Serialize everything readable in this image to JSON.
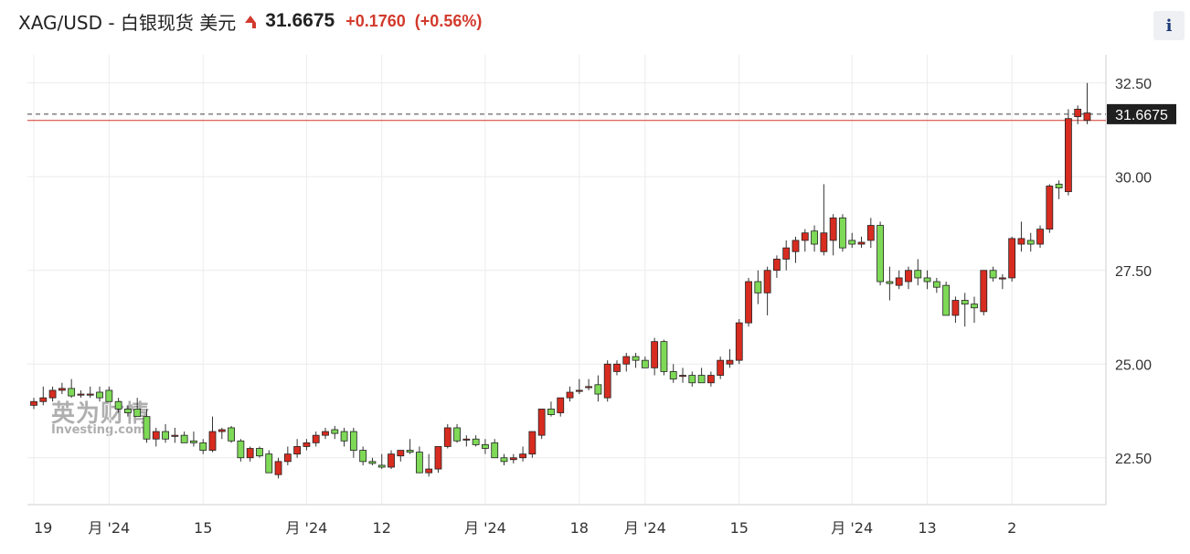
{
  "header": {
    "instrument": "XAG/USD - 白银现货 美元",
    "price": "31.6675",
    "change": "+0.1760",
    "change_pct": "(+0.56%)"
  },
  "info_button": {
    "label": "i"
  },
  "watermark": {
    "cn": "英为财情",
    "en": "Investing.com"
  },
  "colors": {
    "up": "#7ed957",
    "down": "#d82c20",
    "price_line": "#d23a2d",
    "grid": "#ececec",
    "axis_text": "#333333"
  },
  "chart_data": {
    "type": "candlestick",
    "ylim": [
      21.25,
      33.25
    ],
    "y_ticks": [
      22.5,
      25.0,
      27.5,
      30.0,
      32.5
    ],
    "y_tick_labels": [
      "22.50",
      "25.00",
      "27.50",
      "30.00",
      "32.50"
    ],
    "x_tick_labels": [
      "19",
      "月 '24",
      "15",
      "月 '24",
      "12",
      "月 '24",
      "18",
      "月 '24",
      "15",
      "月 '24",
      "13",
      "2"
    ],
    "x_tick_index": [
      0,
      8,
      18,
      29,
      37,
      48,
      58,
      65,
      75,
      87,
      95,
      104
    ],
    "current_price": 31.6675,
    "current_price_label": "31.6675",
    "reference_line": 31.5,
    "grid": true,
    "candles": [
      [
        23.9,
        24.1,
        23.8,
        24.0
      ],
      [
        24.0,
        24.4,
        23.9,
        24.1
      ],
      [
        24.1,
        24.4,
        24.0,
        24.3
      ],
      [
        24.3,
        24.5,
        24.2,
        24.35
      ],
      [
        24.35,
        24.6,
        24.1,
        24.15
      ],
      [
        24.2,
        24.3,
        24.1,
        24.2
      ],
      [
        24.2,
        24.4,
        24.1,
        24.2
      ],
      [
        24.25,
        24.4,
        24.0,
        24.1
      ],
      [
        24.3,
        24.4,
        24.0,
        24.0
      ],
      [
        24.0,
        24.1,
        23.7,
        23.8
      ],
      [
        23.8,
        23.9,
        23.6,
        23.7
      ],
      [
        23.8,
        24.1,
        23.6,
        23.6
      ],
      [
        23.6,
        23.8,
        22.9,
        23.0
      ],
      [
        23.0,
        23.3,
        22.8,
        23.2
      ],
      [
        23.2,
        23.4,
        22.9,
        23.0
      ],
      [
        23.1,
        23.3,
        22.9,
        23.1
      ],
      [
        23.1,
        23.2,
        22.9,
        22.9
      ],
      [
        22.95,
        23.2,
        22.8,
        22.9
      ],
      [
        22.9,
        23.0,
        22.6,
        22.7
      ],
      [
        22.7,
        23.6,
        22.65,
        23.2
      ],
      [
        23.2,
        23.3,
        23.0,
        23.25
      ],
      [
        23.3,
        23.35,
        22.9,
        22.95
      ],
      [
        22.95,
        23.0,
        22.4,
        22.5
      ],
      [
        22.5,
        22.8,
        22.4,
        22.75
      ],
      [
        22.75,
        22.8,
        22.5,
        22.55
      ],
      [
        22.6,
        22.7,
        22.1,
        22.1
      ],
      [
        22.05,
        22.5,
        21.95,
        22.4
      ],
      [
        22.4,
        22.8,
        22.3,
        22.6
      ],
      [
        22.6,
        23.0,
        22.5,
        22.8
      ],
      [
        22.8,
        23.0,
        22.7,
        22.9
      ],
      [
        22.9,
        23.2,
        22.8,
        23.1
      ],
      [
        23.1,
        23.3,
        23.0,
        23.2
      ],
      [
        23.25,
        23.35,
        23.0,
        23.15
      ],
      [
        23.2,
        23.3,
        22.8,
        22.95
      ],
      [
        23.2,
        23.3,
        22.5,
        22.7
      ],
      [
        22.7,
        22.8,
        22.3,
        22.4
      ],
      [
        22.4,
        22.5,
        22.3,
        22.35
      ],
      [
        22.3,
        22.6,
        22.2,
        22.25
      ],
      [
        22.25,
        22.7,
        22.2,
        22.6
      ],
      [
        22.55,
        22.7,
        22.4,
        22.7
      ],
      [
        22.7,
        23.0,
        22.6,
        22.65
      ],
      [
        22.65,
        22.8,
        22.1,
        22.1
      ],
      [
        22.1,
        22.6,
        22.0,
        22.2
      ],
      [
        22.2,
        22.8,
        22.1,
        22.8
      ],
      [
        22.8,
        23.4,
        22.75,
        23.3
      ],
      [
        23.3,
        23.4,
        22.9,
        22.95
      ],
      [
        23.0,
        23.1,
        22.8,
        23.0
      ],
      [
        23.0,
        23.1,
        22.8,
        22.85
      ],
      [
        22.85,
        23.0,
        22.6,
        22.75
      ],
      [
        22.9,
        23.0,
        22.5,
        22.5
      ],
      [
        22.5,
        22.6,
        22.3,
        22.4
      ],
      [
        22.45,
        22.6,
        22.35,
        22.5
      ],
      [
        22.5,
        22.8,
        22.4,
        22.6
      ],
      [
        22.6,
        23.2,
        22.5,
        23.2
      ],
      [
        23.1,
        23.8,
        23.0,
        23.8
      ],
      [
        23.8,
        24.0,
        23.6,
        23.65
      ],
      [
        23.7,
        24.1,
        23.6,
        24.1
      ],
      [
        24.1,
        24.4,
        24.0,
        24.25
      ],
      [
        24.3,
        24.6,
        24.2,
        24.3
      ],
      [
        24.4,
        24.6,
        24.3,
        24.4
      ],
      [
        24.45,
        24.7,
        24.0,
        24.2
      ],
      [
        24.1,
        25.1,
        24.0,
        25.0
      ],
      [
        24.8,
        25.1,
        24.7,
        25.0
      ],
      [
        25.0,
        25.3,
        24.8,
        25.2
      ],
      [
        25.2,
        25.3,
        24.9,
        25.1
      ],
      [
        25.1,
        25.2,
        24.9,
        24.9
      ],
      [
        24.9,
        25.7,
        24.7,
        25.6
      ],
      [
        25.6,
        25.65,
        24.7,
        24.8
      ],
      [
        24.8,
        25.0,
        24.5,
        24.6
      ],
      [
        24.7,
        24.9,
        24.5,
        24.7
      ],
      [
        24.7,
        24.8,
        24.4,
        24.5
      ],
      [
        24.7,
        24.9,
        24.5,
        24.5
      ],
      [
        24.5,
        24.8,
        24.4,
        24.7
      ],
      [
        24.7,
        25.2,
        24.6,
        25.1
      ],
      [
        25.0,
        25.4,
        24.9,
        25.1
      ],
      [
        25.1,
        26.2,
        25.0,
        26.1
      ],
      [
        26.1,
        27.3,
        26.0,
        27.2
      ],
      [
        27.2,
        27.5,
        26.6,
        26.9
      ],
      [
        26.9,
        27.6,
        26.3,
        27.5
      ],
      [
        27.5,
        27.9,
        27.3,
        27.8
      ],
      [
        27.8,
        28.3,
        27.5,
        28.1
      ],
      [
        28.0,
        28.4,
        27.7,
        28.3
      ],
      [
        28.3,
        28.6,
        28.0,
        28.5
      ],
      [
        28.55,
        28.7,
        28.0,
        28.2
      ],
      [
        28.0,
        29.8,
        27.9,
        28.5
      ],
      [
        28.3,
        29.0,
        27.9,
        28.9
      ],
      [
        28.9,
        29.0,
        28.0,
        28.1
      ],
      [
        28.3,
        28.5,
        28.1,
        28.2
      ],
      [
        28.2,
        28.4,
        28.1,
        28.25
      ],
      [
        28.3,
        28.9,
        28.1,
        28.7
      ],
      [
        28.7,
        28.8,
        27.1,
        27.2
      ],
      [
        27.2,
        27.6,
        26.7,
        27.15
      ],
      [
        27.1,
        27.5,
        27.0,
        27.3
      ],
      [
        27.2,
        27.6,
        27.0,
        27.5
      ],
      [
        27.5,
        27.8,
        27.1,
        27.3
      ],
      [
        27.3,
        27.5,
        27.0,
        27.2
      ],
      [
        27.2,
        27.3,
        26.9,
        27.05
      ],
      [
        27.1,
        27.2,
        26.3,
        26.3
      ],
      [
        26.3,
        26.8,
        26.1,
        26.7
      ],
      [
        26.7,
        26.9,
        26.0,
        26.6
      ],
      [
        26.6,
        26.8,
        26.1,
        26.5
      ],
      [
        26.4,
        27.5,
        26.3,
        27.5
      ],
      [
        27.5,
        27.6,
        27.2,
        27.3
      ],
      [
        27.3,
        27.4,
        27.0,
        27.3
      ],
      [
        27.3,
        28.4,
        27.2,
        28.35
      ],
      [
        28.2,
        28.8,
        28.0,
        28.35
      ],
      [
        28.3,
        28.5,
        28.0,
        28.2
      ],
      [
        28.2,
        28.7,
        28.1,
        28.6
      ],
      [
        28.6,
        29.8,
        28.5,
        29.75
      ],
      [
        29.8,
        29.9,
        29.4,
        29.7
      ],
      [
        29.6,
        31.8,
        29.5,
        31.55
      ],
      [
        31.6,
        31.9,
        31.4,
        31.8
      ],
      [
        31.5,
        32.5,
        31.4,
        31.7
      ]
    ]
  }
}
